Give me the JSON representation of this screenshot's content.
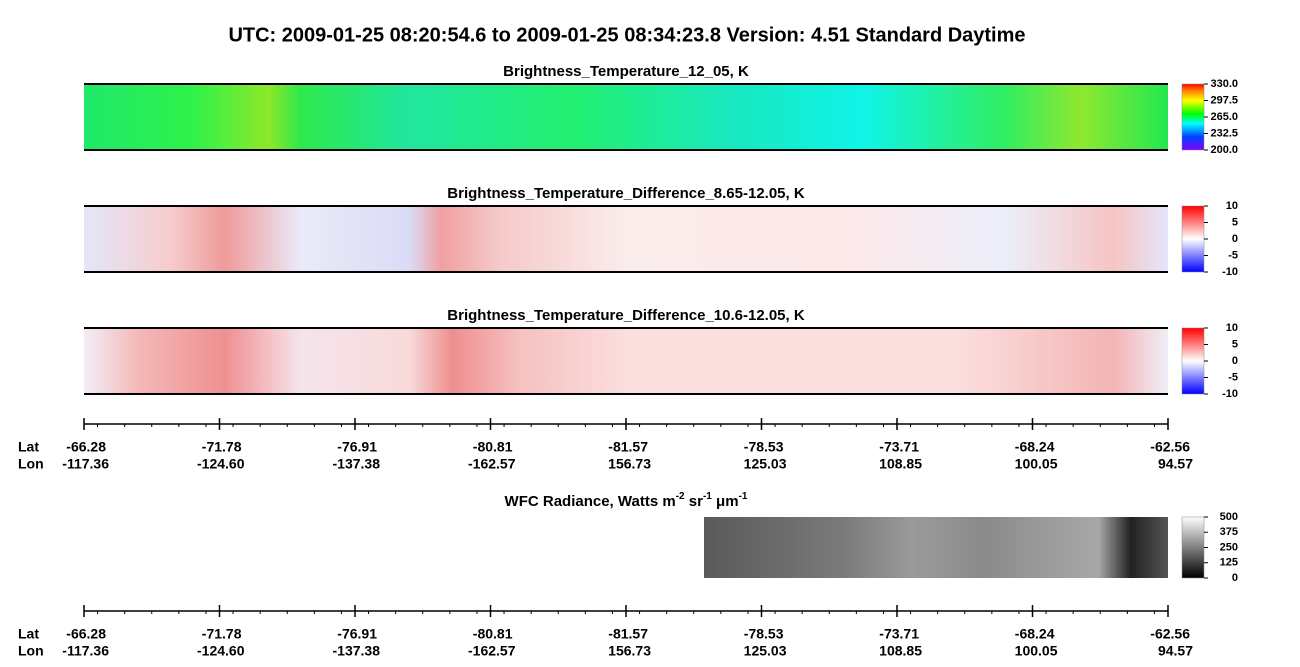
{
  "title": "UTC:  2009-01-25   08:20:54.6  to  2009-01-25   08:34:23.8    Version: 4.51  Standard Daytime",
  "panels": [
    {
      "title": "Brightness_Temperature_12_05, K",
      "colorbar": [
        "330.0",
        "297.5",
        "265.0",
        "232.5",
        "200.0"
      ]
    },
    {
      "title": "Brightness_Temperature_Difference_8.65-12.05, K",
      "colorbar": [
        "10",
        "5",
        "0",
        "-5",
        "-10"
      ]
    },
    {
      "title": "Brightness_Temperature_Difference_10.6-12.05, K",
      "colorbar": [
        "10",
        "5",
        "0",
        "-5",
        "-10"
      ]
    }
  ],
  "axis_1": {
    "lat_label": "Lat",
    "lon_label": "Lon",
    "lat": [
      "-66.28",
      "-71.78",
      "-76.91",
      "-80.81",
      "-81.57",
      "-78.53",
      "-73.71",
      "-68.24",
      "-62.56"
    ],
    "lon": [
      "-117.36",
      "-124.60",
      "-137.38",
      "-162.57",
      "156.73",
      "125.03",
      "108.85",
      "100.05",
      "94.57"
    ]
  },
  "wfc": {
    "title": [
      "WFC Radiance, Watts m",
      "-2",
      " sr",
      "-1",
      " μm",
      "-1"
    ],
    "colorbar": [
      "500",
      "375",
      "250",
      "125",
      "0"
    ]
  },
  "axis_2": {
    "lat_label": "Lat",
    "lon_label": "Lon",
    "lat": [
      "-66.28",
      "-71.78",
      "-76.91",
      "-80.81",
      "-81.57",
      "-78.53",
      "-73.71",
      "-68.24",
      "-62.56"
    ],
    "lon": [
      "-117.36",
      "-124.60",
      "-137.38",
      "-162.57",
      "156.73",
      "125.03",
      "108.85",
      "100.05",
      "94.57"
    ]
  }
}
